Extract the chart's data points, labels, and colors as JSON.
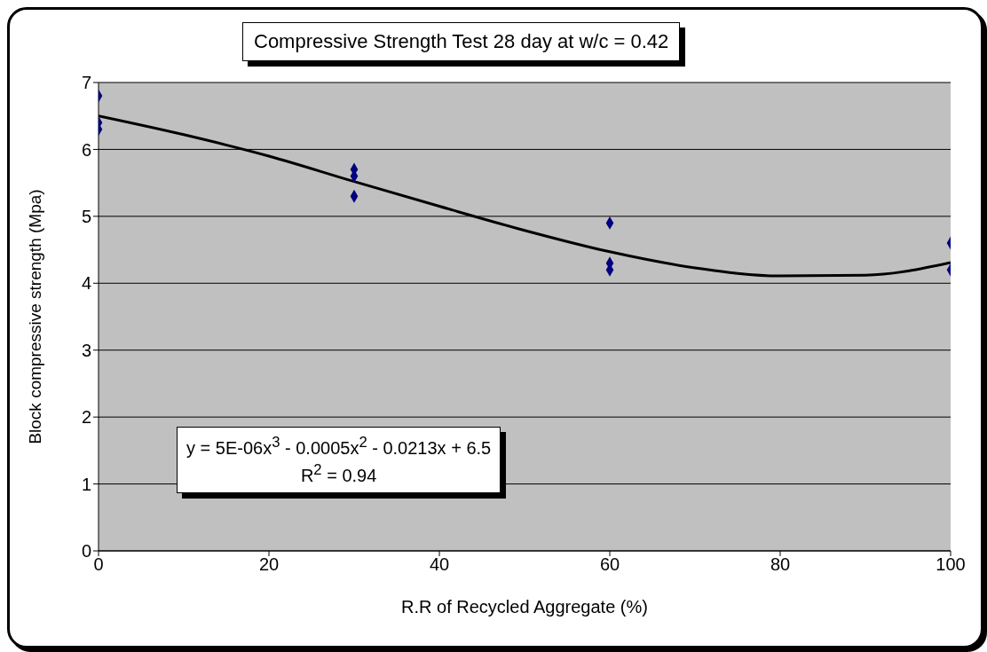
{
  "chart_data": {
    "type": "scatter",
    "title": "Compressive Strength Test 28 day at w/c = 0.42",
    "xlabel": "R.R of Recycled Aggregate (%)",
    "ylabel": "Block compressive strength (Mpa)",
    "xlim": [
      0,
      100
    ],
    "xticks": [
      0,
      20,
      40,
      60,
      80,
      100
    ],
    "ylim": [
      0,
      7
    ],
    "yticks": [
      0,
      1,
      2,
      3,
      4,
      5,
      6,
      7
    ],
    "grid": "y",
    "marker": "diamond",
    "series": [
      {
        "color": "#000080",
        "x": [
          0,
          0,
          0,
          30,
          30,
          30,
          60,
          60,
          60,
          100,
          100
        ],
        "values": [
          6.8,
          6.4,
          6.3,
          5.7,
          5.6,
          5.3,
          4.9,
          4.3,
          4.2,
          4.6,
          4.2
        ]
      },
      {
        "type": "line",
        "marker": "none",
        "color": "#000000",
        "x": [
          0,
          10,
          20,
          30,
          40,
          50,
          60,
          70,
          80,
          90,
          100
        ],
        "values": [
          6.5,
          6.22,
          5.9,
          5.52,
          5.15,
          4.79,
          4.47,
          4.23,
          4.11,
          4.12,
          4.31
        ]
      }
    ],
    "annotations": [
      "y = 5E-06x$^{3}$ - 0.0005x$^{2}$ - 0.0213x + 6.5\nR$^{2}$ = 0.94"
    ]
  }
}
